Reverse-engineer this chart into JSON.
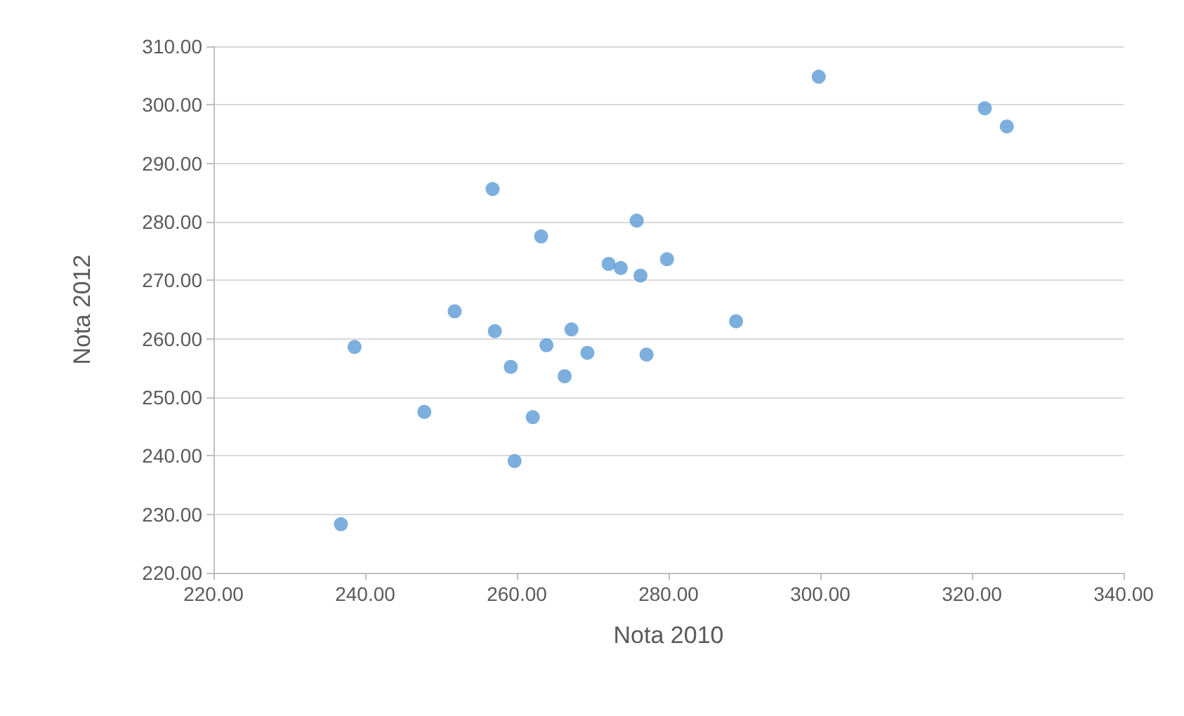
{
  "chart_data": {
    "type": "scatter",
    "xlabel": "Nota 2010",
    "ylabel": "Nota 2012",
    "x": [
      299.8,
      321.7,
      324.6,
      256.8,
      275.8,
      263.2,
      272.1,
      273.7,
      276.3,
      279.8,
      251.8,
      238.6,
      257.1,
      263.9,
      267.2,
      269.3,
      277.1,
      288.9,
      259.2,
      266.3,
      247.8,
      262.1,
      259.7,
      236.8
    ],
    "values": [
      304.8,
      299.4,
      296.3,
      285.6,
      280.2,
      277.5,
      272.8,
      272.1,
      270.8,
      273.6,
      264.7,
      258.6,
      261.3,
      258.9,
      261.6,
      257.6,
      257.3,
      263.0,
      255.2,
      253.6,
      247.5,
      246.6,
      239.1,
      228.3
    ],
    "color": "#5b9bd5",
    "marker": "circle",
    "xlim": [
      220,
      340
    ],
    "xticks": [
      {
        "value": 220,
        "label": "220.00"
      },
      {
        "value": 240,
        "label": "240.00"
      },
      {
        "value": 260,
        "label": "260.00"
      },
      {
        "value": 280,
        "label": "280.00"
      },
      {
        "value": 300,
        "label": "300.00"
      },
      {
        "value": 320,
        "label": "320.00"
      },
      {
        "value": 340,
        "label": "340.00"
      }
    ],
    "ylim": [
      220,
      310
    ],
    "yticks": [
      {
        "value": 220,
        "label": "220.00"
      },
      {
        "value": 230,
        "label": "230.00"
      },
      {
        "value": 240,
        "label": "240.00"
      },
      {
        "value": 250,
        "label": "250.00"
      },
      {
        "value": 260,
        "label": "260.00"
      },
      {
        "value": 270,
        "label": "270.00"
      },
      {
        "value": 280,
        "label": "280.00"
      },
      {
        "value": 290,
        "label": "290.00"
      },
      {
        "value": 300,
        "label": "300.00"
      },
      {
        "value": 310,
        "label": "310.00"
      }
    ],
    "grid": "y"
  }
}
